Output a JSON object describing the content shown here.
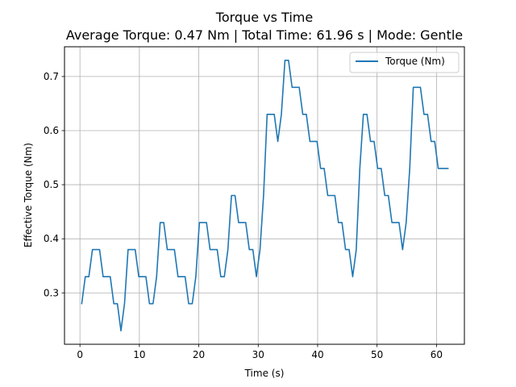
{
  "chart_data": {
    "type": "line",
    "title": "Torque vs Time",
    "subtitle": "Average Torque: 0.47 Nm | Total Time: 61.96 s | Mode: Gentle",
    "xlabel": "Time (s)",
    "ylabel": "Effective Torque (Nm)",
    "xlim": [
      -2.6,
      64.7
    ],
    "ylim": [
      0.205,
      0.755
    ],
    "xticks": [
      0,
      10,
      20,
      30,
      40,
      50,
      60
    ],
    "yticks": [
      0.3,
      0.4,
      0.5,
      0.6,
      0.7
    ],
    "ytick_labels": [
      "0.3",
      "0.4",
      "0.5",
      "0.6",
      "0.7"
    ],
    "grid": true,
    "legend_position": "top-right",
    "colors": {
      "series": "#1f77b4",
      "grid": "#b0b0b0"
    },
    "series": [
      {
        "name": "Torque (Nm)",
        "x": [
          0.3,
          0.9,
          1.5,
          2.1,
          2.7,
          3.3,
          3.9,
          4.5,
          5.1,
          5.7,
          6.3,
          6.9,
          7.5,
          8.1,
          8.7,
          9.3,
          9.9,
          10.5,
          11.1,
          11.7,
          12.3,
          12.9,
          13.5,
          14.1,
          14.7,
          15.3,
          15.9,
          16.5,
          17.1,
          17.7,
          18.3,
          18.9,
          19.5,
          20.1,
          20.7,
          21.3,
          21.9,
          22.5,
          23.1,
          23.7,
          24.3,
          24.9,
          25.5,
          26.1,
          26.7,
          27.3,
          27.9,
          28.5,
          29.1,
          29.7,
          30.3,
          30.9,
          31.5,
          32.1,
          32.7,
          33.3,
          33.9,
          34.5,
          35.1,
          35.7,
          36.3,
          36.9,
          37.5,
          38.1,
          38.7,
          39.3,
          39.9,
          40.5,
          41.1,
          41.7,
          42.3,
          42.9,
          43.5,
          44.1,
          44.7,
          45.3,
          45.9,
          46.5,
          47.1,
          47.7,
          48.3,
          48.9,
          49.5,
          50.1,
          50.7,
          51.3,
          51.9,
          52.5,
          53.1,
          53.7,
          54.3,
          54.9,
          55.5,
          56.1,
          56.7,
          57.3,
          57.9,
          58.5,
          59.1,
          59.7,
          60.3,
          60.9,
          61.5,
          61.96
        ],
        "values": [
          0.28,
          0.33,
          0.33,
          0.38,
          0.38,
          0.38,
          0.33,
          0.33,
          0.33,
          0.28,
          0.28,
          0.23,
          0.28,
          0.38,
          0.38,
          0.38,
          0.33,
          0.33,
          0.33,
          0.28,
          0.28,
          0.33,
          0.43,
          0.43,
          0.38,
          0.38,
          0.38,
          0.33,
          0.33,
          0.33,
          0.28,
          0.28,
          0.33,
          0.43,
          0.43,
          0.43,
          0.38,
          0.38,
          0.38,
          0.33,
          0.33,
          0.38,
          0.48,
          0.48,
          0.43,
          0.43,
          0.43,
          0.38,
          0.38,
          0.33,
          0.38,
          0.48,
          0.63,
          0.63,
          0.63,
          0.58,
          0.63,
          0.73,
          0.73,
          0.68,
          0.68,
          0.68,
          0.63,
          0.63,
          0.58,
          0.58,
          0.58,
          0.53,
          0.53,
          0.48,
          0.48,
          0.48,
          0.43,
          0.43,
          0.38,
          0.38,
          0.33,
          0.38,
          0.53,
          0.63,
          0.63,
          0.58,
          0.58,
          0.53,
          0.53,
          0.48,
          0.48,
          0.43,
          0.43,
          0.43,
          0.38,
          0.43,
          0.53,
          0.68,
          0.68,
          0.68,
          0.63,
          0.63,
          0.58,
          0.58,
          0.53,
          0.53,
          0.53,
          0.53
        ]
      }
    ]
  }
}
